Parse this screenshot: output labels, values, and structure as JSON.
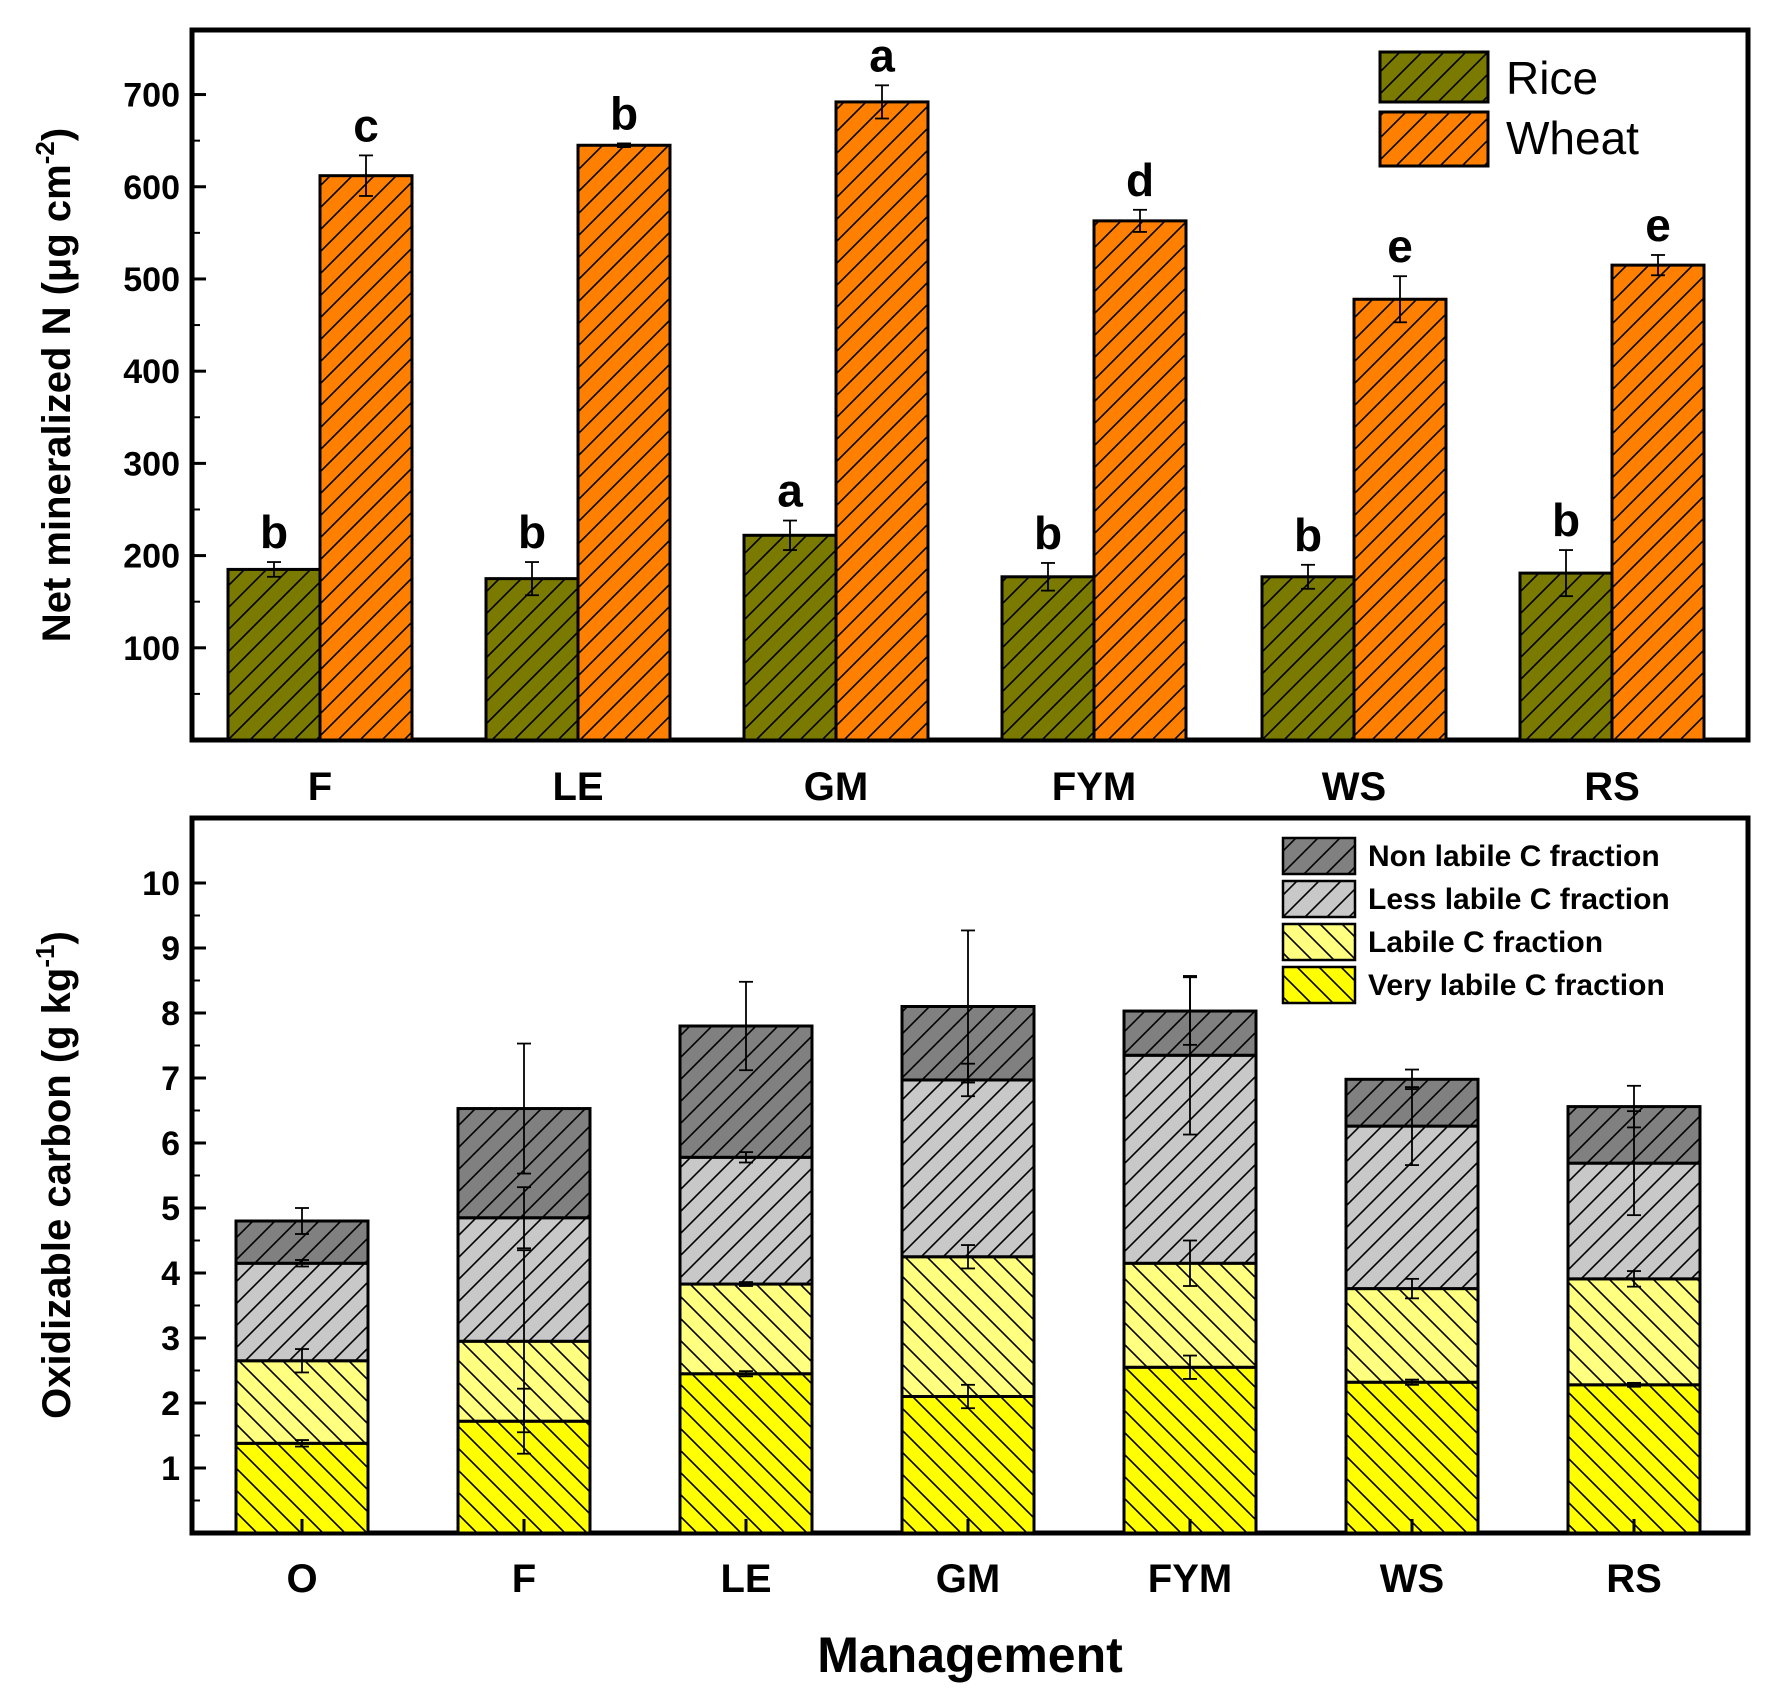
{
  "colors": {
    "rice": "#7A7A00",
    "wheat": "#FF8000",
    "non_labile": "#808080",
    "less_labile": "#C8C8C8",
    "labile": "#FFFF80",
    "very_labile": "#FFFF00"
  },
  "xlabel": "Management",
  "chart_data": [
    {
      "type": "bar",
      "ylabel": "Net mineralized N (μg cm",
      "ylabel_sup": "-2",
      "ylabel_close": ")",
      "categories": [
        "F",
        "LE",
        "GM",
        "FYM",
        "WS",
        "RS"
      ],
      "ylim": [
        0,
        770
      ],
      "yticks": [
        "100",
        "200",
        "300",
        "400",
        "500",
        "600",
        "700"
      ],
      "series": [
        {
          "name": "Rice",
          "values": [
            185,
            175,
            222,
            177,
            177,
            181
          ],
          "errors": [
            8,
            18,
            16,
            15,
            13,
            25
          ],
          "letters": [
            "b",
            "b",
            "a",
            "b",
            "b",
            "b"
          ]
        },
        {
          "name": "Wheat",
          "values": [
            612,
            645,
            692,
            563,
            478,
            515
          ],
          "errors": [
            22,
            2,
            18,
            12,
            25,
            11
          ],
          "letters": [
            "c",
            "b",
            "a",
            "d",
            "e",
            "e"
          ]
        }
      ]
    },
    {
      "type": "stacked-bar",
      "ylabel": "Oxidizable carbon (g kg",
      "ylabel_sup": "-1",
      "ylabel_close": ")",
      "categories": [
        "O",
        "F",
        "LE",
        "GM",
        "FYM",
        "WS",
        "RS"
      ],
      "ylim": [
        0,
        11
      ],
      "yticks": [
        "1",
        "2",
        "3",
        "4",
        "5",
        "6",
        "7",
        "8",
        "9",
        "10"
      ],
      "legend": [
        "Non labile C fraction",
        "Less labile C fraction",
        "Labile C fraction",
        "Very labile C fraction"
      ],
      "series": [
        {
          "name": "Very labile C fraction",
          "values": [
            1.38,
            1.72,
            2.45,
            2.1,
            2.55,
            2.32,
            2.28
          ],
          "errors": [
            0.05,
            0.5,
            0.04,
            0.18,
            0.18,
            0.04,
            0.03
          ]
        },
        {
          "name": "Labile C fraction",
          "values": [
            1.27,
            1.23,
            1.38,
            2.15,
            1.6,
            1.44,
            1.63
          ],
          "errors": [
            0.18,
            1.4,
            0.03,
            0.18,
            0.35,
            0.15,
            0.12
          ]
        },
        {
          "name": "Less labile C fraction",
          "values": [
            1.5,
            1.9,
            1.95,
            2.72,
            3.2,
            2.5,
            1.78
          ],
          "errors": [
            0.05,
            0.47,
            0.08,
            0.25,
            1.22,
            0.6,
            0.8
          ]
        },
        {
          "name": "Non labile C fraction",
          "values": [
            0.65,
            1.68,
            2.02,
            1.13,
            0.68,
            0.72,
            0.87
          ],
          "errors": [
            0.2,
            1.0,
            0.68,
            1.17,
            0.52,
            0.15,
            0.32
          ]
        }
      ]
    }
  ]
}
